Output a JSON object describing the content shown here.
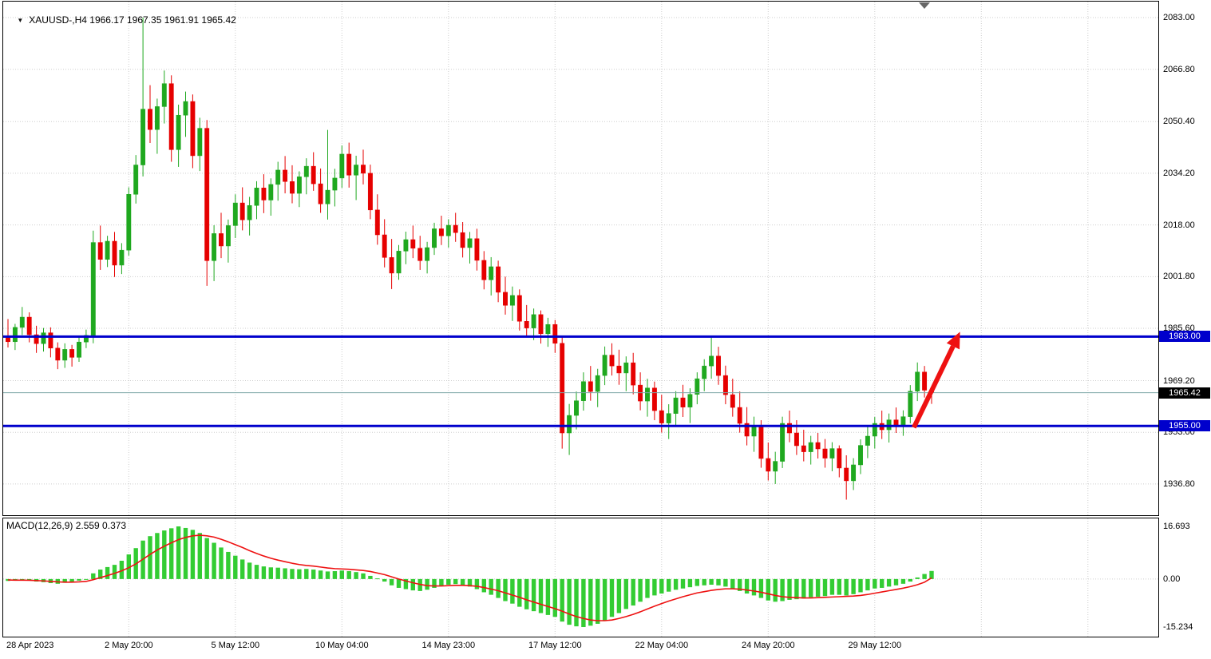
{
  "colors": {
    "background": "#ffffff",
    "border": "#000000",
    "grid": "#cdcdcd",
    "text": "#000000",
    "bull": "#1fa81f",
    "bear": "#e60000",
    "macd_hist": "#33cc33",
    "macd_signal": "#ee1111",
    "level_line": "#0000cc",
    "level_label_bg": "#0000cc",
    "price_label_bg": "#000000",
    "bid_line": "#7da7a7",
    "arrow": "#ee1111",
    "shift_marker": "#666666"
  },
  "header": {
    "dropdown_icon": "▼",
    "symbol_info": "XAUUSD-,H4 1966.17 1967.35 1961.91 1965.42"
  },
  "macd_header": {
    "label": "MACD(12,26,9) 2.559 0.373"
  },
  "price_axis": {
    "ticks": [
      "2083.00",
      "2066.80",
      "2050.40",
      "2034.20",
      "2018.00",
      "2001.80",
      "1985.60",
      "1969.20",
      "1953.00",
      "1936.80"
    ]
  },
  "macd_axis": {
    "ticks": [
      {
        "label": "16.693",
        "value": 16.693
      },
      {
        "label": "0.00",
        "value": 0
      },
      {
        "label": "-15.234",
        "value": -15.234
      }
    ]
  },
  "time_axis": {
    "ticks": [
      {
        "label": "28 Apr 2023",
        "idx": 0
      },
      {
        "label": "2 May 20:00",
        "idx": 17
      },
      {
        "label": "5 May 12:00",
        "idx": 32
      },
      {
        "label": "10 May 04:00",
        "idx": 47
      },
      {
        "label": "14 May 23:00",
        "idx": 62
      },
      {
        "label": "17 May 12:00",
        "idx": 77
      },
      {
        "label": "22 May 04:00",
        "idx": 92
      },
      {
        "label": "24 May 20:00",
        "idx": 107
      },
      {
        "label": "29 May 12:00",
        "idx": 122
      }
    ]
  },
  "levels": [
    {
      "price": 1983.0,
      "label": "1983.00"
    },
    {
      "price": 1955.0,
      "label": "1955.00"
    }
  ],
  "current_price": {
    "value": 1965.42,
    "label": "1965.42"
  },
  "annotations": {
    "trend_arrow": {
      "from": {
        "idx": 127.5,
        "price": 1954.5
      },
      "to": {
        "idx": 134,
        "price": 1984.5
      }
    }
  },
  "chart_data": {
    "type": "candlestick",
    "symbol": "XAUUSD-",
    "timeframe": "H4",
    "ohlc_current": {
      "open": 1966.17,
      "high": 1967.35,
      "low": 1961.91,
      "close": 1965.42
    },
    "price_tick_step": 16.2,
    "future_grid_idx": [
      137,
      152
    ],
    "ohlc": [
      [
        1983.2,
        1988.5,
        1979.6,
        1981.4
      ],
      [
        1981.4,
        1987.0,
        1978.8,
        1985.9
      ],
      [
        1985.9,
        1992.3,
        1983.5,
        1989.1
      ],
      [
        1989.1,
        1990.6,
        1981.2,
        1983.6
      ],
      [
        1983.6,
        1986.4,
        1977.9,
        1980.8
      ],
      [
        1980.8,
        1985.7,
        1978.3,
        1984.2
      ],
      [
        1984.2,
        1985.9,
        1976.5,
        1979.4
      ],
      [
        1979.4,
        1981.2,
        1972.8,
        1975.6
      ],
      [
        1975.6,
        1980.9,
        1973.2,
        1979.0
      ],
      [
        1979.0,
        1980.4,
        1973.6,
        1976.5
      ],
      [
        1976.5,
        1982.8,
        1975.1,
        1981.3
      ],
      [
        1981.3,
        1985.2,
        1979.4,
        1983.4
      ],
      [
        1983.4,
        2016.2,
        1980.9,
        2012.5
      ],
      [
        2012.5,
        2017.8,
        2003.9,
        2007.2
      ],
      [
        2007.2,
        2014.6,
        2004.8,
        2012.9
      ],
      [
        2012.9,
        2015.8,
        2001.7,
        2005.4
      ],
      [
        2005.4,
        2012.3,
        2002.6,
        2010.1
      ],
      [
        2010.1,
        2029.8,
        2008.4,
        2027.6
      ],
      [
        2027.6,
        2039.9,
        2024.7,
        2036.8
      ],
      [
        2036.8,
        2083.0,
        2033.2,
        2054.3
      ],
      [
        2054.3,
        2061.8,
        2043.7,
        2047.9
      ],
      [
        2047.9,
        2057.6,
        2040.3,
        2055.1
      ],
      [
        2055.1,
        2066.4,
        2049.8,
        2062.3
      ],
      [
        2062.3,
        2064.9,
        2037.8,
        2041.6
      ],
      [
        2041.6,
        2055.7,
        2036.2,
        2052.4
      ],
      [
        2052.4,
        2059.8,
        2045.6,
        2056.7
      ],
      [
        2056.7,
        2058.9,
        2035.8,
        2039.7
      ],
      [
        2039.7,
        2051.6,
        2034.9,
        2048.3
      ],
      [
        2048.3,
        2050.9,
        1998.9,
        2006.8
      ],
      [
        2006.8,
        2017.9,
        2000.4,
        2015.3
      ],
      [
        2015.3,
        2021.8,
        2007.6,
        2011.4
      ],
      [
        2011.4,
        2019.7,
        2006.2,
        2017.8
      ],
      [
        2017.8,
        2027.6,
        2013.9,
        2024.9
      ],
      [
        2024.9,
        2029.8,
        2016.3,
        2019.6
      ],
      [
        2019.6,
        2026.8,
        2014.7,
        2024.1
      ],
      [
        2024.1,
        2031.7,
        2019.8,
        2029.6
      ],
      [
        2029.6,
        2033.9,
        2021.7,
        2025.8
      ],
      [
        2025.8,
        2032.6,
        2020.9,
        2030.7
      ],
      [
        2030.7,
        2037.8,
        2025.6,
        2035.2
      ],
      [
        2035.2,
        2039.6,
        2027.9,
        2031.6
      ],
      [
        2031.6,
        2036.7,
        2024.8,
        2027.9
      ],
      [
        2027.9,
        2034.8,
        2023.6,
        2033.1
      ],
      [
        2033.1,
        2038.9,
        2027.6,
        2036.4
      ],
      [
        2036.4,
        2040.8,
        2028.7,
        2030.9
      ],
      [
        2030.9,
        2035.7,
        2021.8,
        2024.6
      ],
      [
        2024.6,
        2047.8,
        2019.7,
        2028.9
      ],
      [
        2028.9,
        2035.6,
        2023.8,
        2032.7
      ],
      [
        2032.7,
        2042.9,
        2029.6,
        2040.2
      ],
      [
        2040.2,
        2043.8,
        2029.7,
        2033.6
      ],
      [
        2033.6,
        2039.7,
        2025.8,
        2036.8
      ],
      [
        2036.8,
        2041.6,
        2030.7,
        2034.2
      ],
      [
        2034.2,
        2036.9,
        2019.8,
        2022.7
      ],
      [
        2022.7,
        2027.6,
        2011.8,
        2014.9
      ],
      [
        2014.9,
        2019.8,
        2004.7,
        2007.8
      ],
      [
        2007.8,
        2013.6,
        1997.9,
        2002.9
      ],
      [
        2002.9,
        2011.7,
        2000.8,
        2009.8
      ],
      [
        2009.8,
        2015.9,
        2005.7,
        2013.4
      ],
      [
        2013.4,
        2017.8,
        2007.6,
        2010.7
      ],
      [
        2010.7,
        2014.6,
        2003.9,
        2006.8
      ],
      [
        2006.8,
        2012.7,
        2002.8,
        2010.9
      ],
      [
        2010.9,
        2018.7,
        2008.6,
        2016.8
      ],
      [
        2016.8,
        2020.9,
        2011.7,
        2014.6
      ],
      [
        2014.6,
        2019.8,
        2010.9,
        2017.9
      ],
      [
        2017.9,
        2021.8,
        2012.7,
        2015.6
      ],
      [
        2015.6,
        2018.9,
        2007.8,
        2010.9
      ],
      [
        2010.9,
        2015.8,
        2005.9,
        2013.7
      ],
      [
        2013.7,
        2016.8,
        2003.7,
        2006.9
      ],
      [
        2006.9,
        2009.8,
        1997.8,
        2000.8
      ],
      [
        2000.8,
        2007.9,
        1995.9,
        2004.9
      ],
      [
        2004.9,
        2006.8,
        1993.8,
        1996.9
      ],
      [
        1996.9,
        2001.8,
        1989.9,
        1992.8
      ],
      [
        1992.8,
        1998.7,
        1987.9,
        1995.9
      ],
      [
        1995.9,
        1997.8,
        1984.9,
        1987.8
      ],
      [
        1987.8,
        1992.9,
        1982.8,
        1985.7
      ],
      [
        1985.7,
        1991.8,
        1981.9,
        1989.9
      ],
      [
        1989.9,
        1991.2,
        1980.8,
        1983.9
      ],
      [
        1983.9,
        1988.9,
        1979.8,
        1986.8
      ],
      [
        1986.8,
        1988.2,
        1977.9,
        1980.9
      ],
      [
        1980.9,
        1982.8,
        1947.9,
        1952.8
      ],
      [
        1952.8,
        1961.9,
        1945.9,
        1958.3
      ],
      [
        1958.3,
        1965.8,
        1953.9,
        1962.9
      ],
      [
        1962.9,
        1971.8,
        1959.8,
        1968.9
      ],
      [
        1968.9,
        1973.8,
        1962.9,
        1965.8
      ],
      [
        1965.8,
        1972.9,
        1960.9,
        1970.8
      ],
      [
        1970.8,
        1979.9,
        1967.8,
        1977.2
      ],
      [
        1977.2,
        1980.9,
        1970.8,
        1973.8
      ],
      [
        1973.8,
        1978.9,
        1967.9,
        1971.6
      ],
      [
        1971.6,
        1976.8,
        1965.9,
        1974.8
      ],
      [
        1974.8,
        1977.9,
        1964.9,
        1967.8
      ],
      [
        1967.8,
        1971.8,
        1959.9,
        1962.8
      ],
      [
        1962.8,
        1969.8,
        1957.9,
        1966.9
      ],
      [
        1966.9,
        1968.9,
        1956.8,
        1959.8
      ],
      [
        1959.8,
        1964.8,
        1952.9,
        1955.9
      ],
      [
        1955.9,
        1961.8,
        1950.9,
        1958.9
      ],
      [
        1958.9,
        1965.9,
        1954.8,
        1963.8
      ],
      [
        1963.8,
        1967.9,
        1957.8,
        1960.9
      ],
      [
        1960.9,
        1966.8,
        1955.9,
        1964.9
      ],
      [
        1964.9,
        1971.8,
        1961.8,
        1969.8
      ],
      [
        1969.8,
        1975.9,
        1965.9,
        1973.8
      ],
      [
        1973.8,
        1982.9,
        1969.8,
        1976.9
      ],
      [
        1976.9,
        1979.8,
        1967.9,
        1970.8
      ],
      [
        1970.8,
        1973.9,
        1961.8,
        1964.8
      ],
      [
        1964.8,
        1969.8,
        1957.9,
        1960.8
      ],
      [
        1960.8,
        1965.8,
        1952.9,
        1955.8
      ],
      [
        1955.8,
        1960.9,
        1948.9,
        1951.8
      ],
      [
        1951.8,
        1957.9,
        1946.9,
        1954.8
      ],
      [
        1954.8,
        1956.8,
        1941.9,
        1944.8
      ],
      [
        1944.8,
        1949.8,
        1937.9,
        1940.8
      ],
      [
        1940.8,
        1946.9,
        1936.8,
        1943.9
      ],
      [
        1943.9,
        1957.9,
        1941.8,
        1955.8
      ],
      [
        1955.8,
        1959.8,
        1949.9,
        1952.8
      ],
      [
        1952.8,
        1956.8,
        1945.9,
        1948.8
      ],
      [
        1948.8,
        1953.8,
        1943.9,
        1946.9
      ],
      [
        1946.9,
        1951.9,
        1942.9,
        1949.8
      ],
      [
        1949.8,
        1952.8,
        1944.8,
        1947.8
      ],
      [
        1947.8,
        1950.9,
        1941.9,
        1944.9
      ],
      [
        1944.9,
        1949.9,
        1940.8,
        1947.9
      ],
      [
        1947.9,
        1948.9,
        1938.9,
        1941.8
      ],
      [
        1941.8,
        1945.8,
        1931.9,
        1937.8
      ],
      [
        1937.8,
        1944.9,
        1934.9,
        1942.8
      ],
      [
        1942.8,
        1950.8,
        1939.9,
        1948.9
      ],
      [
        1948.9,
        1954.8,
        1944.9,
        1951.8
      ],
      [
        1951.8,
        1957.8,
        1947.9,
        1955.8
      ],
      [
        1955.8,
        1959.8,
        1950.9,
        1953.8
      ],
      [
        1953.8,
        1958.9,
        1949.8,
        1956.9
      ],
      [
        1956.9,
        1960.8,
        1952.8,
        1954.8
      ],
      [
        1954.8,
        1959.9,
        1951.9,
        1957.9
      ],
      [
        1957.9,
        1967.8,
        1955.8,
        1965.9
      ],
      [
        1965.9,
        1974.9,
        1962.8,
        1971.9
      ],
      [
        1971.9,
        1973.8,
        1963.9,
        1966.2
      ],
      [
        1966.17,
        1967.35,
        1961.91,
        1965.42
      ]
    ],
    "macd": {
      "name": "MACD",
      "params": "12,26,9",
      "current_macd": 2.559,
      "current_signal": 0.373,
      "histogram": [
        -0.6,
        -0.4,
        -0.2,
        -0.5,
        -0.8,
        -1.0,
        -1.3,
        -1.5,
        -1.2,
        -0.9,
        -0.5,
        -0.2,
        1.8,
        3.0,
        3.8,
        4.5,
        5.8,
        7.8,
        9.8,
        12.2,
        13.6,
        14.6,
        15.4,
        16.1,
        16.693,
        16.2,
        15.6,
        14.6,
        13.0,
        11.5,
        10.0,
        8.6,
        7.4,
        6.2,
        5.2,
        4.5,
        4.0,
        3.7,
        3.6,
        3.4,
        3.2,
        3.1,
        3.2,
        3.0,
        2.7,
        2.4,
        2.5,
        2.7,
        2.5,
        2.2,
        1.8,
        1.0,
        0.2,
        -0.8,
        -2.0,
        -2.8,
        -3.2,
        -3.6,
        -3.8,
        -3.4,
        -2.8,
        -2.2,
        -1.8,
        -1.6,
        -2.0,
        -2.4,
        -3.2,
        -4.2,
        -5.0,
        -6.0,
        -7.0,
        -7.8,
        -8.8,
        -9.6,
        -10.2,
        -10.8,
        -11.4,
        -12.0,
        -13.5,
        -14.5,
        -15.0,
        -15.234,
        -14.8,
        -14.2,
        -13.2,
        -12.0,
        -10.8,
        -9.5,
        -8.4,
        -7.2,
        -6.0,
        -5.2,
        -4.6,
        -4.0,
        -3.4,
        -3.0,
        -2.6,
        -2.2,
        -2.0,
        -1.8,
        -2.0,
        -2.4,
        -3.0,
        -3.8,
        -4.6,
        -5.2,
        -6.0,
        -6.8,
        -7.2,
        -7.0,
        -6.6,
        -6.4,
        -6.2,
        -5.8,
        -5.6,
        -5.4,
        -5.0,
        -5.0,
        -5.2,
        -4.8,
        -4.2,
        -3.6,
        -3.0,
        -2.8,
        -2.4,
        -2.0,
        -1.5,
        -0.8,
        0.5,
        1.6,
        2.559
      ],
      "signal": [
        -0.3,
        -0.35,
        -0.35,
        -0.4,
        -0.5,
        -0.6,
        -0.75,
        -0.9,
        -1.0,
        -1.0,
        -0.9,
        -0.75,
        -0.2,
        0.45,
        1.1,
        1.8,
        2.6,
        3.6,
        4.8,
        6.3,
        7.8,
        9.2,
        10.4,
        11.5,
        12.5,
        13.2,
        13.7,
        13.9,
        13.7,
        13.3,
        12.6,
        11.8,
        10.9,
        10.0,
        9.0,
        8.1,
        7.3,
        6.6,
        6.0,
        5.5,
        5.0,
        4.6,
        4.3,
        4.1,
        3.8,
        3.5,
        3.3,
        3.2,
        3.1,
        2.9,
        2.7,
        2.4,
        1.9,
        1.4,
        0.7,
        0.0,
        -0.6,
        -1.2,
        -1.7,
        -2.1,
        -2.2,
        -2.2,
        -2.1,
        -2.0,
        -2.0,
        -2.1,
        -2.3,
        -2.7,
        -3.2,
        -3.7,
        -4.4,
        -5.1,
        -5.8,
        -6.6,
        -7.3,
        -8.0,
        -8.7,
        -9.4,
        -10.2,
        -11.1,
        -11.9,
        -12.5,
        -13.0,
        -13.2,
        -13.2,
        -13.0,
        -12.5,
        -11.9,
        -11.2,
        -10.4,
        -9.5,
        -8.6,
        -7.8,
        -7.0,
        -6.3,
        -5.6,
        -5.0,
        -4.4,
        -4.0,
        -3.6,
        -3.3,
        -3.1,
        -3.1,
        -3.2,
        -3.5,
        -3.8,
        -4.2,
        -4.7,
        -5.2,
        -5.6,
        -5.8,
        -5.9,
        -6.0,
        -6.0,
        -5.9,
        -5.8,
        -5.7,
        -5.6,
        -5.5,
        -5.4,
        -5.2,
        -4.9,
        -4.5,
        -4.1,
        -3.7,
        -3.3,
        -2.9,
        -2.4,
        -1.8,
        -1.0,
        0.373
      ]
    }
  }
}
